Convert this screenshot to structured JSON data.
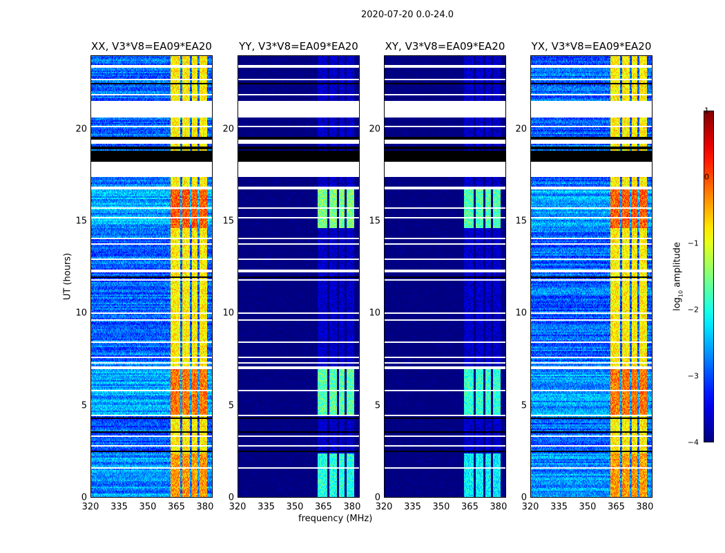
{
  "chart_data": {
    "type": "heatmap",
    "title": "2020-07-20 0.0-24.0",
    "xlabel": "frequency (MHz)",
    "ylabel": "UT (hours)",
    "xlim": [
      320,
      384
    ],
    "ylim": [
      0,
      24
    ],
    "xticks": [
      "320",
      "335",
      "350",
      "365",
      "380"
    ],
    "xtick_values": [
      320,
      335,
      350,
      365,
      380
    ],
    "yticks": [
      "0",
      "5",
      "10",
      "15",
      "20"
    ],
    "ytick_values": [
      0,
      5,
      10,
      15,
      20
    ],
    "colorbar": {
      "label": "log10 amplitude",
      "label_main": "log",
      "label_sub": "10",
      "label_tail": " amplitude",
      "range": [
        -4,
        1
      ],
      "ticks": [
        "1",
        "0",
        "−1",
        "−2",
        "−3",
        "−4"
      ],
      "tick_values": [
        1,
        0,
        -1,
        -2,
        -3,
        -4
      ]
    },
    "panels": [
      {
        "title": "XX, V3*V8=EA09*EA20",
        "base_level": -2.9,
        "band_level": -0.8
      },
      {
        "title": "YY, V3*V8=EA09*EA20",
        "base_level": -4.0,
        "band_level": -2.6
      },
      {
        "title": "XY, V3*V8=EA09*EA20",
        "base_level": -4.0,
        "band_level": -2.8
      },
      {
        "title": "YX, V3*V8=EA09*EA20",
        "base_level": -2.9,
        "band_level": -0.8
      }
    ],
    "rfi_band_mhz": [
      362,
      381
    ],
    "rfi_channels_mhz": [
      [
        362,
        367
      ],
      [
        368,
        372
      ],
      [
        373,
        376
      ],
      [
        377,
        381
      ]
    ],
    "active_periods_hours": [
      {
        "start": 14.6,
        "end": 16.7,
        "boost": 1.2
      },
      {
        "start": 4.5,
        "end": 7.0,
        "boost": 1.0
      },
      {
        "start": 0,
        "end": 2.4,
        "boost": 0.7
      }
    ],
    "flagged_rows_hours": [
      {
        "start": 23.35,
        "end": 23.45,
        "color": "white"
      },
      {
        "start": 22.65,
        "end": 22.75,
        "color": "white"
      },
      {
        "start": 22.45,
        "end": 22.5,
        "color": "black"
      },
      {
        "start": 22.25,
        "end": 22.3,
        "color": "white"
      },
      {
        "start": 21.85,
        "end": 21.9,
        "color": "white"
      },
      {
        "start": 20.6,
        "end": 21.5,
        "color": "white"
      },
      {
        "start": 20.1,
        "end": 20.2,
        "color": "white"
      },
      {
        "start": 19.4,
        "end": 19.6,
        "color": "black"
      },
      {
        "start": 19.2,
        "end": 19.4,
        "color": "white"
      },
      {
        "start": 18.9,
        "end": 19.05,
        "color": "black"
      },
      {
        "start": 18.2,
        "end": 18.8,
        "color": "black"
      },
      {
        "start": 17.4,
        "end": 18.2,
        "color": "white"
      },
      {
        "start": 17.0,
        "end": 17.05,
        "color": "white"
      },
      {
        "start": 16.75,
        "end": 16.85,
        "color": "white"
      },
      {
        "start": 15.65,
        "end": 15.72,
        "color": "white"
      },
      {
        "start": 15.15,
        "end": 15.2,
        "color": "white"
      },
      {
        "start": 14.45,
        "end": 14.5,
        "color": "black"
      },
      {
        "start": 14.05,
        "end": 14.1,
        "color": "white"
      },
      {
        "start": 13.75,
        "end": 13.8,
        "color": "white"
      },
      {
        "start": 12.9,
        "end": 12.95,
        "color": "white"
      },
      {
        "start": 12.5,
        "end": 12.55,
        "color": "white"
      },
      {
        "start": 12.2,
        "end": 12.35,
        "color": "white"
      },
      {
        "start": 11.95,
        "end": 12.0,
        "color": "black"
      },
      {
        "start": 11.8,
        "end": 11.85,
        "color": "white"
      },
      {
        "start": 10.0,
        "end": 10.05,
        "color": "white"
      },
      {
        "start": 9.6,
        "end": 9.65,
        "color": "white"
      },
      {
        "start": 8.6,
        "end": 8.65,
        "color": "white"
      },
      {
        "start": 8.4,
        "end": 8.45,
        "color": "white"
      },
      {
        "start": 7.6,
        "end": 7.65,
        "color": "white"
      },
      {
        "start": 7.3,
        "end": 7.35,
        "color": "white"
      },
      {
        "start": 7.0,
        "end": 7.1,
        "color": "white"
      },
      {
        "start": 5.8,
        "end": 5.87,
        "color": "white"
      },
      {
        "start": 4.4,
        "end": 4.5,
        "color": "white"
      },
      {
        "start": 4.3,
        "end": 4.35,
        "color": "black"
      },
      {
        "start": 3.5,
        "end": 3.6,
        "color": "black"
      },
      {
        "start": 3.3,
        "end": 3.35,
        "color": "white"
      },
      {
        "start": 2.8,
        "end": 2.85,
        "color": "white"
      },
      {
        "start": 2.5,
        "end": 2.55,
        "color": "black"
      },
      {
        "start": 2.0,
        "end": 2.05,
        "color": "white"
      },
      {
        "start": 1.6,
        "end": 1.68,
        "color": "white"
      }
    ]
  }
}
